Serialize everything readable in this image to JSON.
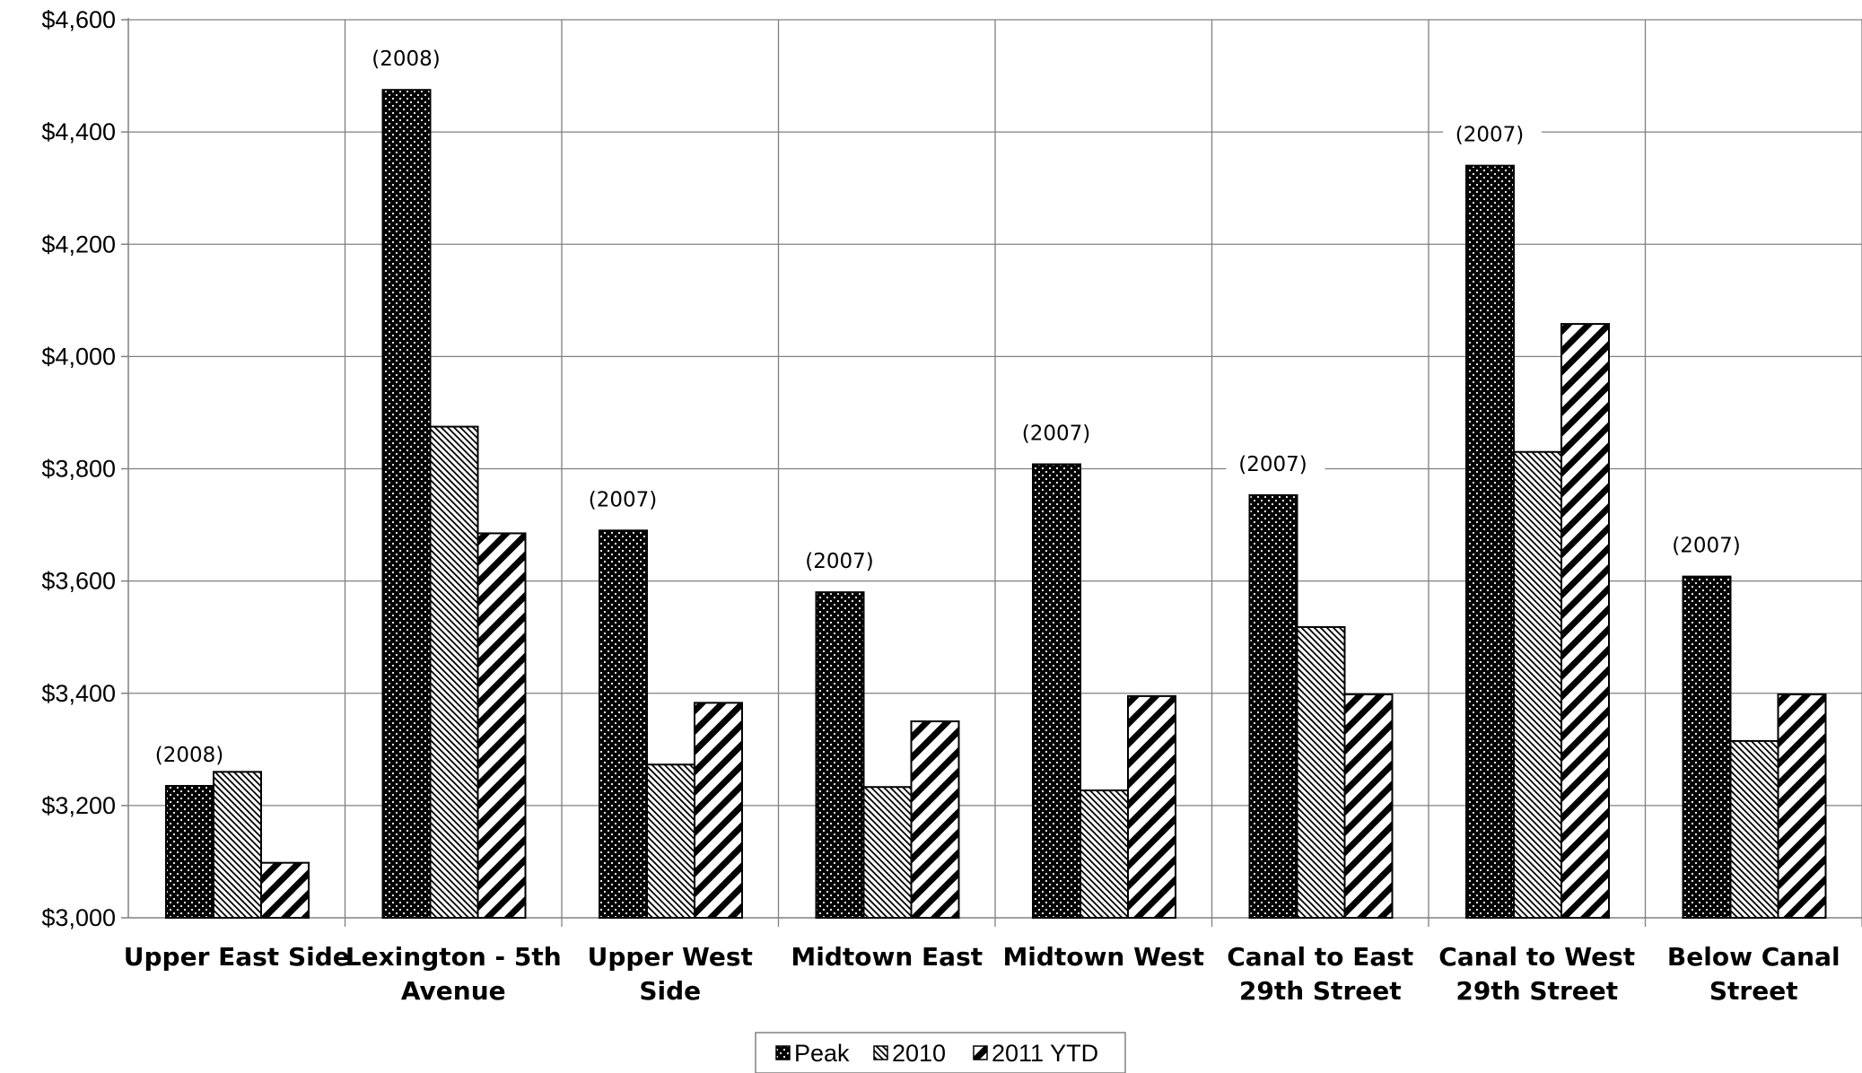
{
  "chart_data": {
    "type": "bar",
    "title": "",
    "xlabel": "",
    "ylabel": "",
    "ylim": [
      3000,
      4600
    ],
    "y_ticks": [
      3000,
      3200,
      3400,
      3600,
      3800,
      4000,
      4200,
      4400,
      4600
    ],
    "y_tick_labels": [
      "$3,000",
      "$3,200",
      "$3,400",
      "$3,600",
      "$3,800",
      "$4,000",
      "$4,200",
      "$4,400",
      "$4,600"
    ],
    "grid": true,
    "legend_position": "bottom-center",
    "categories": [
      [
        "Upper East Side"
      ],
      [
        "Lexington - 5th",
        "Avenue"
      ],
      [
        "Upper West",
        "Side"
      ],
      [
        "Midtown East"
      ],
      [
        "Midtown West"
      ],
      [
        "Canal to East",
        "29th Street"
      ],
      [
        "Canal to West",
        "29th Street"
      ],
      [
        "Below Canal",
        "Street"
      ]
    ],
    "series": [
      {
        "name": "Peak",
        "pattern": "dots",
        "values": [
          3235,
          4475,
          3690,
          3580,
          3808,
          3753,
          4340,
          3608
        ]
      },
      {
        "name": "2010",
        "pattern": "thin-diagonal",
        "values": [
          3260,
          3875,
          3273,
          3233,
          3227,
          3518,
          3830,
          3315
        ]
      },
      {
        "name": "2011 YTD",
        "pattern": "wide-diagonal",
        "values": [
          3098,
          3685,
          3383,
          3350,
          3395,
          3398,
          4058,
          3398
        ]
      }
    ],
    "peak_year_labels": [
      "(2008)",
      "(2008)",
      "(2007)",
      "(2007)",
      "(2007)",
      "(2007)",
      "(2007)",
      "(2007)"
    ],
    "colors": {
      "bar_fill": "#000000",
      "pattern_fill": "#ffffff",
      "grid": "#808080",
      "axis": "#808080"
    }
  }
}
